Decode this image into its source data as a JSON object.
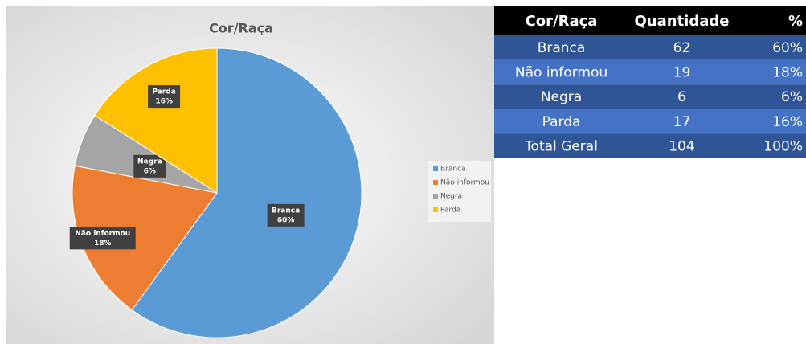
{
  "chart_data": {
    "type": "pie",
    "title": "Cor/Raça",
    "categories": [
      "Branca",
      "Não informou",
      "Negra",
      "Parda"
    ],
    "values": [
      60,
      18,
      6,
      16
    ],
    "value_labels": [
      "60%",
      "18%",
      "6%",
      "16%"
    ],
    "colors": [
      "#5b9bd5",
      "#ed7d31",
      "#a5a5a5",
      "#ffc000"
    ],
    "legend": "right"
  },
  "table": {
    "header": [
      "Cor/Raça",
      "Quantidade",
      "%"
    ],
    "rows": [
      [
        "Branca",
        "62",
        "60%"
      ],
      [
        "Não informou",
        "19",
        "18%"
      ],
      [
        "Negra",
        "6",
        "6%"
      ],
      [
        "Parda",
        "17",
        "16%"
      ],
      [
        "Total Geral",
        "104",
        "100%"
      ]
    ]
  }
}
